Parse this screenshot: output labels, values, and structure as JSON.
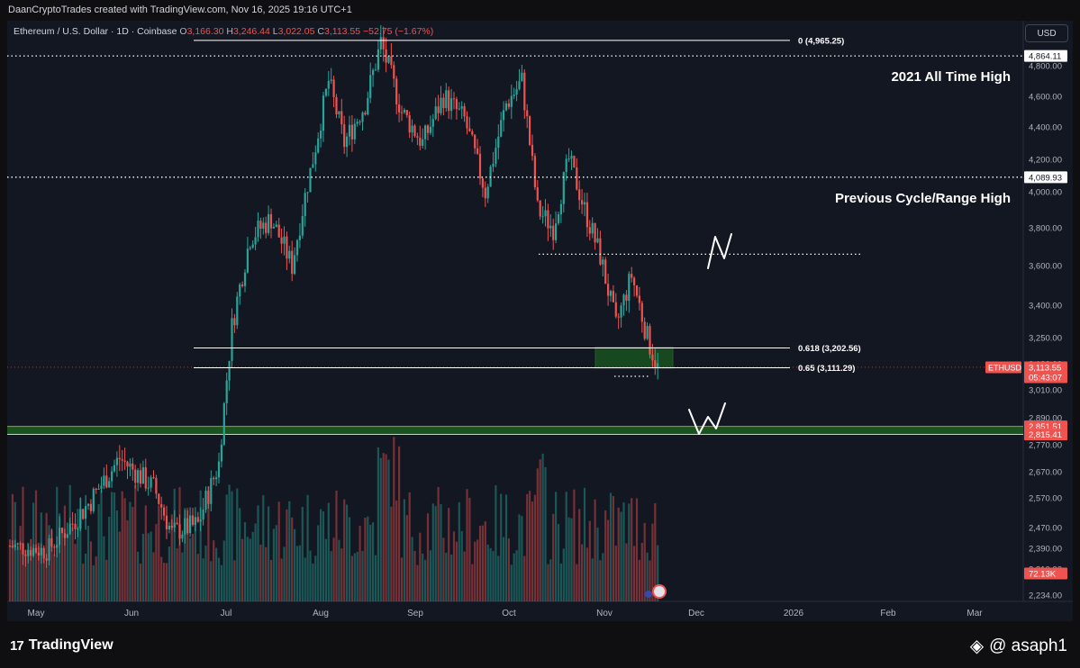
{
  "header": {
    "credit": "DaanCryptoTrades created with TradingView.com, Nov 16, 2025 19:16 UTC+1"
  },
  "legend": {
    "symbol": "Ethereum / U.S. Dollar · 1D · Coinbase",
    "o_label": "O",
    "o_value": "3,166.30",
    "h_label": "H",
    "h_value": "3,246.44",
    "l_label": "L",
    "l_value": "3,022.05",
    "c_label": "C",
    "c_value": "3,113.55",
    "change": "−52.75 (−1.67%)"
  },
  "currency_button": "USD",
  "footer": {
    "brand": "TradingView",
    "brand_mark": "17",
    "handle": "@ asaph1",
    "handle_icon": "binance-square-icon"
  },
  "colors": {
    "background": "#131722",
    "up": "#26a69a",
    "down": "#ef5350",
    "level_line": "#ffffff",
    "support_zone": "#1b5e20",
    "support_border": "#f57c00"
  },
  "chart_data": {
    "type": "candlestick",
    "symbol": "ETHUSD",
    "price_axis_ticks": [
      "4,800.00",
      "4,600.00",
      "4,400.00",
      "4,200.00",
      "4,000.00",
      "3,800.00",
      "3,600.00",
      "3,400.00",
      "3,250.00",
      "3,130.00",
      "3,010.00",
      "2,890.00",
      "2,770.00",
      "2,670.00",
      "2,570.00",
      "2,470.00",
      "2,390.00",
      "2,310.00",
      "2,234.00"
    ],
    "time_axis_ticks": [
      "May",
      "Jun",
      "Jul",
      "Aug",
      "Sep",
      "Oct",
      "Nov",
      "Dec",
      "2026",
      "Feb",
      "Mar"
    ],
    "price_labels": [
      {
        "value": "4,864.11",
        "style": "white"
      },
      {
        "value": "4,089.93",
        "style": "white"
      },
      {
        "value": "3,113.55",
        "style": "red",
        "sub": "05:43:07",
        "tag": "ETHUSD"
      },
      {
        "value": "2,851.51",
        "style": "red"
      },
      {
        "value": "2,815.41",
        "style": "red"
      },
      {
        "value": "72.13K",
        "style": "red"
      }
    ],
    "fib_levels": [
      {
        "label": "0 (4,965.25)",
        "price": 4965.25
      },
      {
        "label": "0.618 (3,202.56)",
        "price": 3202.56
      },
      {
        "label": "0.65 (3,111.29)",
        "price": 3111.29
      }
    ],
    "horizontal_levels": [
      {
        "price": 4864.11,
        "text": "2021 All Time High"
      },
      {
        "price": 4089.93,
        "text": "Previous Cycle/Range High"
      },
      {
        "price": 3660,
        "text": ""
      }
    ],
    "support_zone": {
      "top": 2851.51,
      "bottom": 2815.41
    },
    "ohlc_last": {
      "open": 3166.3,
      "high": 3246.44,
      "low": 3022.05,
      "close": 3113.55,
      "change": -52.75,
      "change_pct": -1.67
    },
    "candles_note": "daily candles May–Nov 2025; rally from ~2,400 in June to ~4,950 late August, topping ~4,750 early Oct, falling to ~3,110 mid-Nov"
  }
}
